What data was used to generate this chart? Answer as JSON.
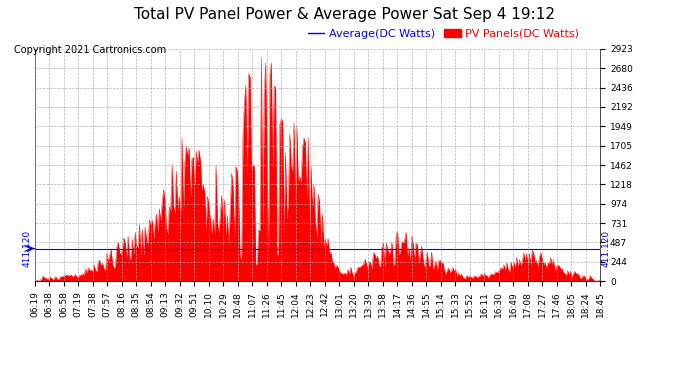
{
  "title": "Total PV Panel Power & Average Power Sat Sep 4 19:12",
  "copyright": "Copyright 2021 Cartronics.com",
  "legend_avg": "Average(DC Watts)",
  "legend_pv": "PV Panels(DC Watts)",
  "avg_color": "#0000ff",
  "pv_color": "#ff0000",
  "background_color": "#ffffff",
  "grid_color": "#aaaaaa",
  "ymin": 0.0,
  "ymax": 2923.1,
  "yticks": [
    0.0,
    243.6,
    487.2,
    730.8,
    974.4,
    1218.0,
    1461.5,
    1705.1,
    1948.7,
    2192.3,
    2435.9,
    2679.5,
    2923.1
  ],
  "hline_value": 411.12,
  "hline_label": "411.120",
  "x_labels": [
    "06:19",
    "06:38",
    "06:58",
    "07:19",
    "07:38",
    "07:57",
    "08:16",
    "08:35",
    "08:54",
    "09:13",
    "09:32",
    "09:51",
    "10:10",
    "10:29",
    "10:48",
    "11:07",
    "11:26",
    "11:45",
    "12:04",
    "12:23",
    "12:42",
    "13:01",
    "13:20",
    "13:39",
    "13:58",
    "14:17",
    "14:36",
    "14:55",
    "15:14",
    "15:33",
    "15:52",
    "16:11",
    "16:30",
    "16:49",
    "17:08",
    "17:27",
    "17:46",
    "18:05",
    "18:24",
    "18:45"
  ],
  "n_points": 400,
  "title_fontsize": 11,
  "tick_fontsize": 6.5,
  "copyright_fontsize": 7,
  "legend_fontsize": 8
}
